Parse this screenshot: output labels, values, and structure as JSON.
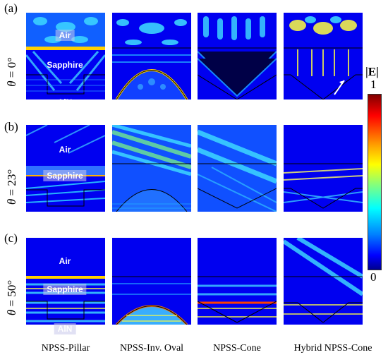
{
  "panels": [
    {
      "letter": "(a)",
      "theta_prefix": "θ",
      "theta_value": " = 0°"
    },
    {
      "letter": "(b)",
      "theta_prefix": "θ",
      "theta_value": " = 23°"
    },
    {
      "letter": "(c)",
      "theta_prefix": "θ",
      "theta_value": " = 50°"
    }
  ],
  "layers": {
    "air": "Air",
    "sapphire": "Sapphire",
    "aln": "AlN"
  },
  "annotation": "Hybrid",
  "columns": [
    "NPSS-Pillar",
    "NPSS-Inv. Oval",
    "NPSS-Cone",
    "Hybrid NPSS-Cone"
  ],
  "colorbar": {
    "title": "|E|",
    "max": "1",
    "min": "0"
  },
  "colors": {
    "field_low": "#0000f0",
    "field_mid": "#00c8ff",
    "field_high": "#ffff00",
    "field_peak": "#ff3000"
  }
}
